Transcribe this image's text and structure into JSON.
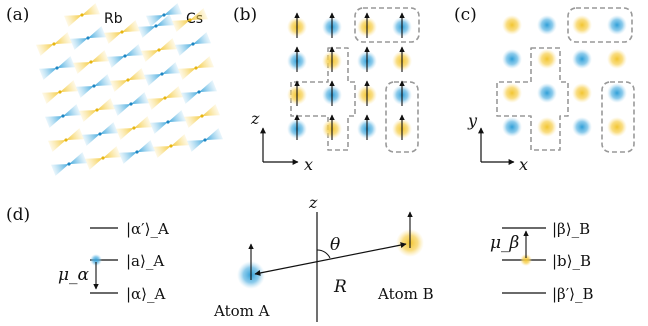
{
  "panel_a": {
    "label": "(a)",
    "legend_rb": "Rb",
    "legend_cs": "Cs"
  },
  "panel_b": {
    "label": "(b)",
    "axis_vertical": "z",
    "axis_horizontal": "x"
  },
  "panel_c": {
    "label": "(c)",
    "axis_vertical": "y",
    "axis_horizontal": "x"
  },
  "panel_d": {
    "label": "(d)",
    "levels_A": [
      "|α′⟩_A",
      "|a⟩_A",
      "|α⟩_A"
    ],
    "dipole_A": "μ_α",
    "atom_a": "Atom A",
    "atom_b": "Atom B",
    "axis_z": "z",
    "angle": "θ",
    "distance": "R",
    "levels_B": [
      "|β⟩_B",
      "|b⟩_B",
      "|β′⟩_B"
    ],
    "dipole_B": "μ_β"
  },
  "colors": {
    "rb": "#f2c530",
    "cs": "#2f9fd8",
    "grouping_box": "#999999"
  },
  "lattice_b": [
    [
      "rb",
      "cs",
      "rb",
      "cs"
    ],
    [
      "cs",
      "rb",
      "cs",
      "rb"
    ],
    [
      "rb",
      "cs",
      "rb",
      "cs"
    ],
    [
      "cs",
      "rb",
      "cs",
      "rb"
    ]
  ],
  "lattice_c": [
    [
      "rb",
      "cs",
      "rb",
      "cs"
    ],
    [
      "cs",
      "rb",
      "cs",
      "rb"
    ],
    [
      "rb",
      "cs",
      "rb",
      "cs"
    ],
    [
      "cs",
      "rb",
      "cs",
      "rb"
    ]
  ]
}
